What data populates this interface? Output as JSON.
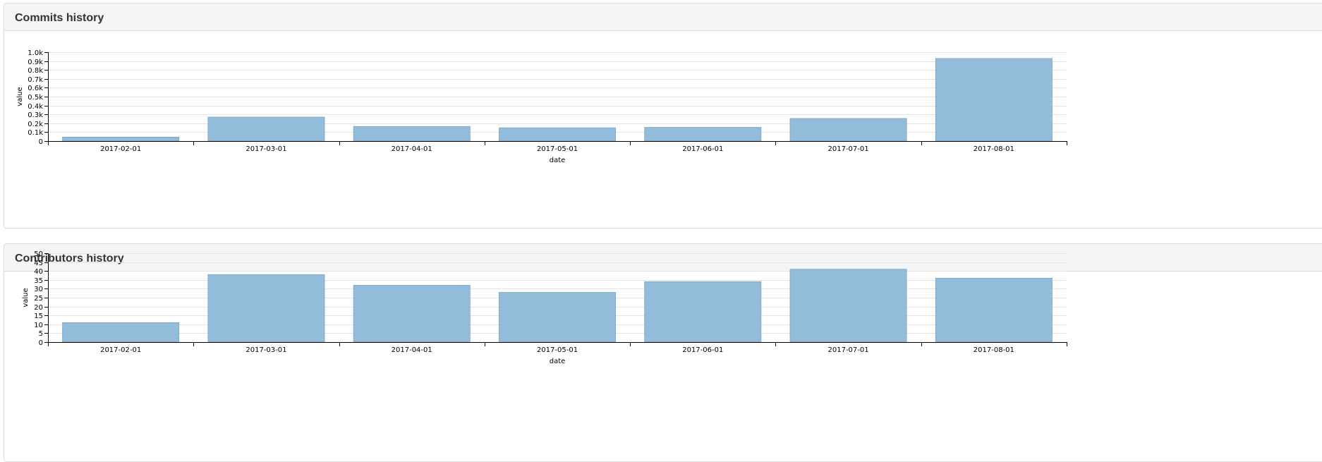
{
  "panels": [
    {
      "title": "Commits history"
    },
    {
      "title": "Contributors history"
    }
  ],
  "colors": {
    "bar_fill": "#93bcdb",
    "bar_stroke": "#6f9cbd",
    "grid": "#e3e3e3",
    "axis": "#000000"
  },
  "chart_data": [
    {
      "type": "bar",
      "title": "Commits history",
      "xlabel": "date",
      "ylabel": "value",
      "categories": [
        "2017-02-01",
        "2017-03-01",
        "2017-04-01",
        "2017-05-01",
        "2017-06-01",
        "2017-07-01",
        "2017-08-01"
      ],
      "values": [
        45,
        270,
        165,
        150,
        155,
        255,
        930
      ],
      "ylim": [
        0,
        1000
      ],
      "yticks": [
        0,
        100,
        200,
        300,
        400,
        500,
        600,
        700,
        800,
        900,
        1000
      ],
      "ytick_labels": [
        "0",
        "0.1k",
        "0.2k",
        "0.3k",
        "0.4k",
        "0.5k",
        "0.6k",
        "0.7k",
        "0.8k",
        "0.9k",
        "1.0k"
      ],
      "grid": true,
      "legend": "none"
    },
    {
      "type": "bar",
      "title": "Contributors history",
      "xlabel": "date",
      "ylabel": "value",
      "categories": [
        "2017-02-01",
        "2017-03-01",
        "2017-04-01",
        "2017-05-01",
        "2017-06-01",
        "2017-07-01",
        "2017-08-01"
      ],
      "values": [
        11,
        38,
        32,
        28,
        34,
        41,
        36
      ],
      "ylim": [
        0,
        50
      ],
      "yticks": [
        0,
        5,
        10,
        15,
        20,
        25,
        30,
        35,
        40,
        45,
        50
      ],
      "ytick_labels": [
        "0",
        "5",
        "10",
        "15",
        "20",
        "25",
        "30",
        "35",
        "40",
        "45",
        "50"
      ],
      "grid": true,
      "legend": "none"
    }
  ]
}
